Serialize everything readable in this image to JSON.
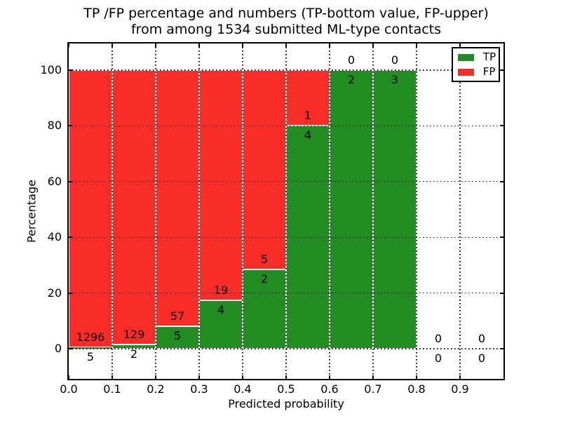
{
  "chart_data": {
    "type": "bar",
    "stacked": true,
    "title_lines": [
      "TP /FP percentage and numbers (TP-bottom value, FP-upper)",
      "from among 1534 submitted ML-type contacts"
    ],
    "title": "TP /FP percentage and numbers (TP-bottom value, FP-upper) from among 1534 submitted ML-type contacts",
    "xlabel": "Predicted probability",
    "ylabel": "Percentage",
    "xlim": [
      0.0,
      1.0
    ],
    "ylim": [
      -11,
      110
    ],
    "xtick_labels": [
      "0.0",
      "0.1",
      "0.2",
      "0.3",
      "0.4",
      "0.5",
      "0.6",
      "0.7",
      "0.8",
      "0.9"
    ],
    "ytick_values": [
      0,
      20,
      40,
      60,
      80,
      100
    ],
    "grid_style": "dotted-both-axes-above-bars",
    "total_contacts": 1534,
    "colors": {
      "tp_green": "#218c21",
      "fp_red": "#f92c28"
    },
    "legend": {
      "position": "upper-right",
      "entries": [
        {
          "label": "TP",
          "color": "#218c21"
        },
        {
          "label": "FP",
          "color": "#f92c28"
        }
      ]
    },
    "bins": [
      {
        "x0": 0.0,
        "x1": 0.1,
        "tp": 5,
        "fp": 1296
      },
      {
        "x0": 0.1,
        "x1": 0.2,
        "tp": 2,
        "fp": 129
      },
      {
        "x0": 0.2,
        "x1": 0.3,
        "tp": 5,
        "fp": 57
      },
      {
        "x0": 0.3,
        "x1": 0.4,
        "tp": 4,
        "fp": 19
      },
      {
        "x0": 0.4,
        "x1": 0.5,
        "tp": 2,
        "fp": 5
      },
      {
        "x0": 0.5,
        "x1": 0.6,
        "tp": 4,
        "fp": 1
      },
      {
        "x0": 0.6,
        "x1": 0.7,
        "tp": 2,
        "fp": 0
      },
      {
        "x0": 0.7,
        "x1": 0.8,
        "tp": 3,
        "fp": 0
      },
      {
        "x0": 0.8,
        "x1": 0.9,
        "tp": 0,
        "fp": 0
      },
      {
        "x0": 0.9,
        "x1": 1.0,
        "tp": 0,
        "fp": 0
      }
    ]
  }
}
